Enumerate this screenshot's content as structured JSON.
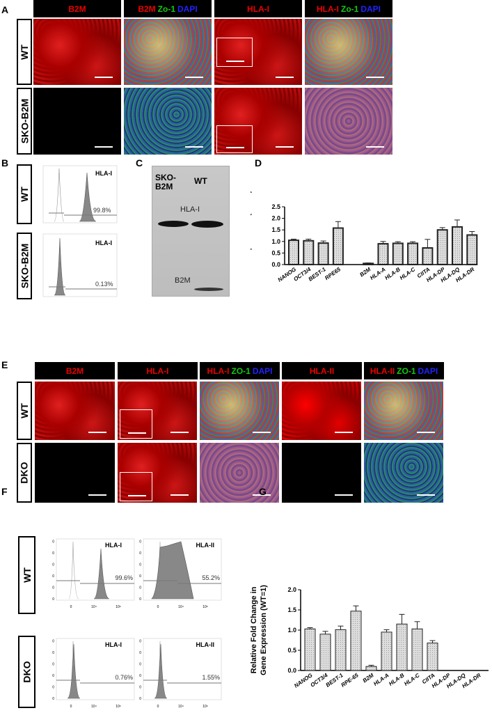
{
  "panelA": {
    "label": "A",
    "headers": [
      [
        "B2M"
      ],
      [
        "B2M",
        "Zo-1",
        "DAPI"
      ],
      [
        "HLA-I"
      ],
      [
        "HLA-I",
        "Zo-1",
        "DAPI"
      ]
    ],
    "rows": [
      "WT",
      "SKO-B2M"
    ]
  },
  "panelB": {
    "label": "B",
    "rows": [
      "WT",
      "SKO-B2M"
    ],
    "marker": "HLA-I",
    "percents": [
      "99.8%",
      "0.13%"
    ]
  },
  "panelC": {
    "label": "C",
    "lanes": [
      "SKO-\nB2M",
      "WT"
    ],
    "lane1": "SKO-",
    "lane1b": "B2M",
    "lane2": "WT",
    "band1": "HLA-I",
    "band2": "B2M"
  },
  "panelD": {
    "label": "D"
  },
  "panelE": {
    "label": "E",
    "headers": [
      [
        "B2M"
      ],
      [
        "HLA-I"
      ],
      [
        "HLA-I",
        "ZO-1",
        "DAPI"
      ],
      [
        "HLA-II"
      ],
      [
        "HLA-II",
        "ZO-1",
        "DAPI"
      ]
    ],
    "rows": [
      "WT",
      "DKO"
    ]
  },
  "panelF": {
    "label": "F",
    "rows": [
      "WT",
      "DKO"
    ],
    "markers": [
      "HLA-I",
      "HLA-II"
    ],
    "percents": [
      [
        "99.6%",
        "55.2%"
      ],
      [
        "0.76%",
        "1.55%"
      ]
    ],
    "yticks": [
      "0",
      "20",
      "40",
      "60",
      "80",
      "100"
    ],
    "xticks": [
      "0",
      "10⁴",
      "10⁶"
    ]
  },
  "panelG": {
    "label": "G"
  },
  "colors": {
    "red": "#e00000",
    "green": "#11cc11",
    "blue": "#2222ff",
    "bar": "#d0d0d0"
  },
  "chart_data": [
    {
      "type": "bar",
      "panel": "D",
      "ylabel": "Relative Fold Change in Gene Expression (WT=1)",
      "ylim": [
        0,
        2.5
      ],
      "yticks": [
        "0.0",
        "0.5",
        "1.0",
        "1.5",
        "2.0",
        "2.5"
      ],
      "categories": [
        "NANOG",
        "OCT3/4",
        "BEST-1",
        "RPE65",
        "B2M",
        "HLA-A",
        "HLA-B",
        "HLA-C",
        "CIITA",
        "HLA-DP",
        "HLA-DQ",
        "HLA-DR"
      ],
      "values": [
        1.05,
        1.03,
        0.93,
        1.58,
        0.05,
        0.9,
        0.92,
        0.92,
        0.72,
        1.5,
        1.63,
        1.28
      ],
      "errors": [
        0.05,
        0.07,
        0.09,
        0.28,
        0.02,
        0.1,
        0.07,
        0.07,
        0.37,
        0.1,
        0.3,
        0.15
      ]
    },
    {
      "type": "bar",
      "panel": "G",
      "ylabel": "Relative Fold Change in Gene Expression (WT=1)",
      "ylim": [
        0,
        2.0
      ],
      "yticks": [
        "0.0",
        "0.5",
        "1.0",
        "1.5",
        "2.0"
      ],
      "categories": [
        "NANOG",
        "OCT3/4",
        "BEST-1",
        "RPE-65",
        "B2M",
        "HLA-A",
        "HLA-B",
        "HLA-C",
        "CIITA",
        "HLA-DP",
        "HLA-DQ",
        "HLA-DR"
      ],
      "values": [
        1.03,
        0.9,
        1.01,
        1.47,
        0.1,
        0.95,
        1.15,
        1.03,
        0.68,
        0,
        0,
        0
      ],
      "errors": [
        0.03,
        0.07,
        0.09,
        0.13,
        0.03,
        0.06,
        0.24,
        0.18,
        0.06,
        0,
        0,
        0
      ]
    }
  ]
}
